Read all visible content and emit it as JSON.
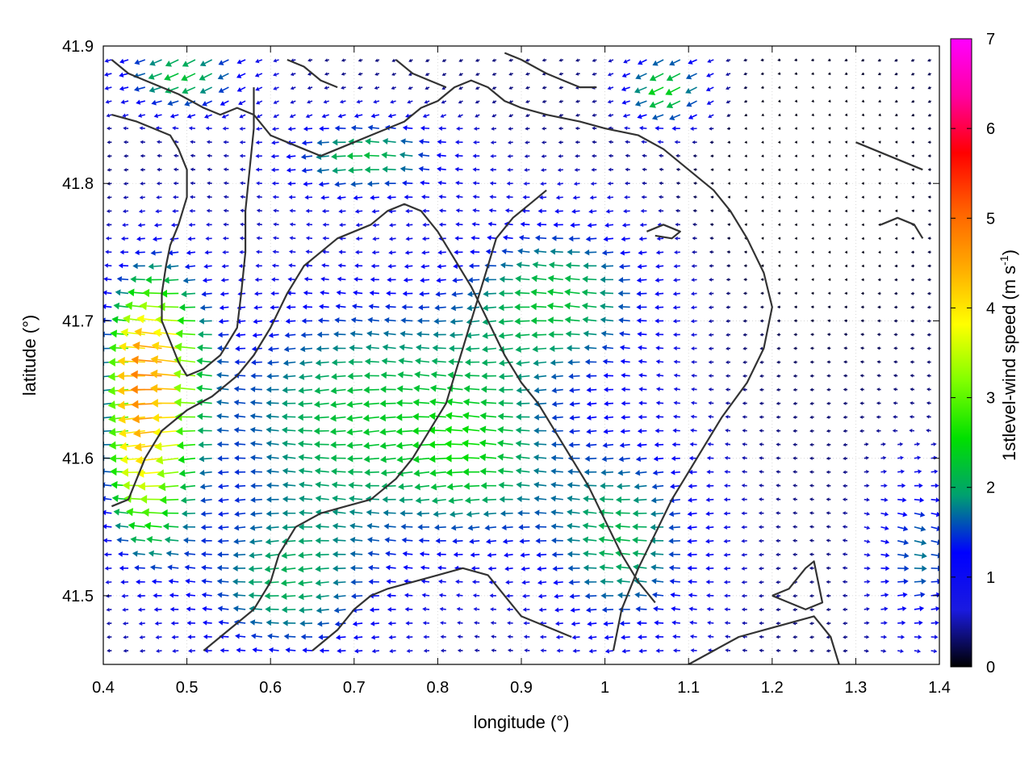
{
  "chart_data": {
    "type": "vector-field",
    "title": "",
    "xlabel": "longitude (°)",
    "ylabel": "latitude (°)",
    "xlim": [
      0.4,
      1.4
    ],
    "ylim": [
      41.45,
      41.9
    ],
    "x_ticks": [
      "0.4",
      "0.5",
      "0.6",
      "0.7",
      "0.8",
      "0.9",
      "1",
      "1.1",
      "1.2",
      "1.3",
      "1.4"
    ],
    "y_ticks": [
      "41.5",
      "41.6",
      "41.7",
      "41.8",
      "41.9"
    ],
    "grid": true,
    "colorbar": {
      "label_main": "1stlevel-wind speed (m s",
      "label_sup": "-1",
      "label_end": ")",
      "range": [
        0,
        7
      ],
      "ticks": [
        "0",
        "1",
        "2",
        "3",
        "4",
        "5",
        "6",
        "7"
      ],
      "colors": [
        "#000000",
        "#1a1ae0",
        "#0000ff",
        "#00a070",
        "#00e000",
        "#80ff00",
        "#ffff00",
        "#ffaa00",
        "#ff6000",
        "#ff0000",
        "#ff00a0",
        "#ff00ff"
      ]
    },
    "wind_field": {
      "grid": {
        "lon_start": 0.41,
        "lon_end": 1.39,
        "lon_step": 0.02,
        "lat_start": 41.46,
        "lat_end": 41.89,
        "lat_step": 0.01
      },
      "direction": "mostly westward (easterly wind), eastward near the right edge at low latitudes",
      "peak_speed": 4.2,
      "peak_location": {
        "lon": 0.48,
        "lat": 41.66
      }
    },
    "contour_lines": [
      [
        [
          0.41,
          41.89
        ],
        [
          0.43,
          41.88
        ],
        [
          0.45,
          41.875
        ],
        [
          0.47,
          41.87
        ],
        [
          0.49,
          41.865
        ],
        [
          0.52,
          41.855
        ],
        [
          0.54,
          41.85
        ],
        [
          0.56,
          41.855
        ],
        [
          0.58,
          41.85
        ],
        [
          0.6,
          41.835
        ],
        [
          0.62,
          41.83
        ],
        [
          0.64,
          41.825
        ],
        [
          0.66,
          41.82
        ],
        [
          0.68,
          41.825
        ],
        [
          0.7,
          41.83
        ],
        [
          0.72,
          41.835
        ],
        [
          0.74,
          41.84
        ],
        [
          0.76,
          41.845
        ],
        [
          0.78,
          41.855
        ],
        [
          0.8,
          41.86
        ],
        [
          0.82,
          41.87
        ],
        [
          0.84,
          41.875
        ],
        [
          0.86,
          41.87
        ],
        [
          0.88,
          41.86
        ],
        [
          0.9,
          41.855
        ],
        [
          0.93,
          41.85
        ],
        [
          0.97,
          41.845
        ],
        [
          1.0,
          41.84
        ],
        [
          1.04,
          41.835
        ],
        [
          1.07,
          41.825
        ],
        [
          1.1,
          41.81
        ],
        [
          1.13,
          41.795
        ],
        [
          1.15,
          41.78
        ],
        [
          1.17,
          41.76
        ],
        [
          1.19,
          41.735
        ],
        [
          1.2,
          41.71
        ],
        [
          1.19,
          41.68
        ],
        [
          1.17,
          41.655
        ],
        [
          1.14,
          41.63
        ],
        [
          1.12,
          41.61
        ],
        [
          1.1,
          41.59
        ],
        [
          1.08,
          41.57
        ],
        [
          1.06,
          41.545
        ],
        [
          1.04,
          41.52
        ],
        [
          1.02,
          41.49
        ],
        [
          1.01,
          41.46
        ]
      ],
      [
        [
          0.41,
          41.85
        ],
        [
          0.44,
          41.845
        ],
        [
          0.46,
          41.84
        ],
        [
          0.48,
          41.835
        ],
        [
          0.49,
          41.825
        ],
        [
          0.5,
          41.81
        ],
        [
          0.5,
          41.79
        ],
        [
          0.49,
          41.77
        ],
        [
          0.48,
          41.755
        ],
        [
          0.475,
          41.74
        ],
        [
          0.47,
          41.72
        ],
        [
          0.47,
          41.7
        ],
        [
          0.48,
          41.685
        ],
        [
          0.49,
          41.67
        ],
        [
          0.5,
          41.66
        ],
        [
          0.52,
          41.665
        ],
        [
          0.54,
          41.675
        ],
        [
          0.56,
          41.695
        ],
        [
          0.565,
          41.72
        ],
        [
          0.57,
          41.75
        ],
        [
          0.57,
          41.78
        ],
        [
          0.575,
          41.81
        ],
        [
          0.58,
          41.84
        ],
        [
          0.58,
          41.86
        ],
        [
          0.58,
          41.87
        ]
      ],
      [
        [
          0.41,
          41.565
        ],
        [
          0.43,
          41.57
        ],
        [
          0.45,
          41.6
        ],
        [
          0.47,
          41.62
        ],
        [
          0.5,
          41.635
        ],
        [
          0.53,
          41.645
        ],
        [
          0.56,
          41.66
        ],
        [
          0.58,
          41.675
        ],
        [
          0.6,
          41.695
        ],
        [
          0.62,
          41.72
        ],
        [
          0.64,
          41.74
        ],
        [
          0.66,
          41.75
        ],
        [
          0.68,
          41.76
        ],
        [
          0.7,
          41.765
        ],
        [
          0.72,
          41.77
        ],
        [
          0.74,
          41.78
        ],
        [
          0.76,
          41.785
        ],
        [
          0.78,
          41.78
        ],
        [
          0.8,
          41.765
        ],
        [
          0.82,
          41.745
        ],
        [
          0.84,
          41.725
        ],
        [
          0.86,
          41.7
        ],
        [
          0.88,
          41.675
        ],
        [
          0.9,
          41.655
        ],
        [
          0.92,
          41.64
        ],
        [
          0.94,
          41.62
        ],
        [
          0.96,
          41.6
        ],
        [
          0.98,
          41.58
        ],
        [
          1.0,
          41.555
        ],
        [
          1.02,
          41.53
        ],
        [
          1.04,
          41.51
        ],
        [
          1.06,
          41.495
        ]
      ],
      [
        [
          0.52,
          41.46
        ],
        [
          0.55,
          41.475
        ],
        [
          0.58,
          41.49
        ],
        [
          0.6,
          41.51
        ],
        [
          0.61,
          41.53
        ],
        [
          0.63,
          41.55
        ],
        [
          0.66,
          41.56
        ],
        [
          0.69,
          41.565
        ],
        [
          0.72,
          41.57
        ],
        [
          0.75,
          41.585
        ],
        [
          0.77,
          41.6
        ],
        [
          0.79,
          41.62
        ],
        [
          0.81,
          41.64
        ],
        [
          0.82,
          41.66
        ],
        [
          0.83,
          41.68
        ],
        [
          0.84,
          41.7
        ],
        [
          0.85,
          41.72
        ],
        [
          0.86,
          41.74
        ],
        [
          0.87,
          41.76
        ],
        [
          0.89,
          41.775
        ],
        [
          0.91,
          41.785
        ],
        [
          0.93,
          41.795
        ]
      ],
      [
        [
          0.65,
          41.46
        ],
        [
          0.68,
          41.475
        ],
        [
          0.7,
          41.49
        ],
        [
          0.72,
          41.5
        ],
        [
          0.74,
          41.505
        ],
        [
          0.77,
          41.51
        ],
        [
          0.8,
          41.515
        ],
        [
          0.83,
          41.52
        ],
        [
          0.86,
          41.515
        ],
        [
          0.88,
          41.5
        ],
        [
          0.9,
          41.485
        ],
        [
          0.92,
          41.48
        ],
        [
          0.94,
          41.475
        ],
        [
          0.96,
          41.47
        ]
      ],
      [
        [
          1.1,
          41.45
        ],
        [
          1.13,
          41.46
        ],
        [
          1.16,
          41.47
        ],
        [
          1.19,
          41.475
        ],
        [
          1.22,
          41.48
        ],
        [
          1.25,
          41.485
        ],
        [
          1.27,
          41.47
        ],
        [
          1.28,
          41.45
        ]
      ],
      [
        [
          1.2,
          41.5
        ],
        [
          1.22,
          41.505
        ],
        [
          1.24,
          41.52
        ],
        [
          1.25,
          41.525
        ],
        [
          1.255,
          41.51
        ],
        [
          1.26,
          41.495
        ],
        [
          1.24,
          41.49
        ],
        [
          1.2,
          41.5
        ]
      ],
      [
        [
          1.3,
          41.83
        ],
        [
          1.32,
          41.825
        ],
        [
          1.34,
          41.82
        ],
        [
          1.36,
          41.815
        ],
        [
          1.38,
          41.81
        ]
      ],
      [
        [
          1.33,
          41.77
        ],
        [
          1.35,
          41.775
        ],
        [
          1.37,
          41.77
        ],
        [
          1.38,
          41.76
        ]
      ],
      [
        [
          0.88,
          41.895
        ],
        [
          0.9,
          41.89
        ],
        [
          0.93,
          41.88
        ],
        [
          0.95,
          41.875
        ],
        [
          0.97,
          41.87
        ],
        [
          0.99,
          41.87
        ]
      ],
      [
        [
          1.05,
          41.765
        ],
        [
          1.07,
          41.77
        ],
        [
          1.09,
          41.765
        ],
        [
          1.08,
          41.76
        ],
        [
          1.06,
          41.762
        ]
      ],
      [
        [
          0.62,
          41.89
        ],
        [
          0.64,
          41.885
        ],
        [
          0.66,
          41.875
        ],
        [
          0.68,
          41.87
        ]
      ],
      [
        [
          0.75,
          41.89
        ],
        [
          0.77,
          41.88
        ],
        [
          0.79,
          41.875
        ],
        [
          0.81,
          41.87
        ]
      ]
    ]
  }
}
